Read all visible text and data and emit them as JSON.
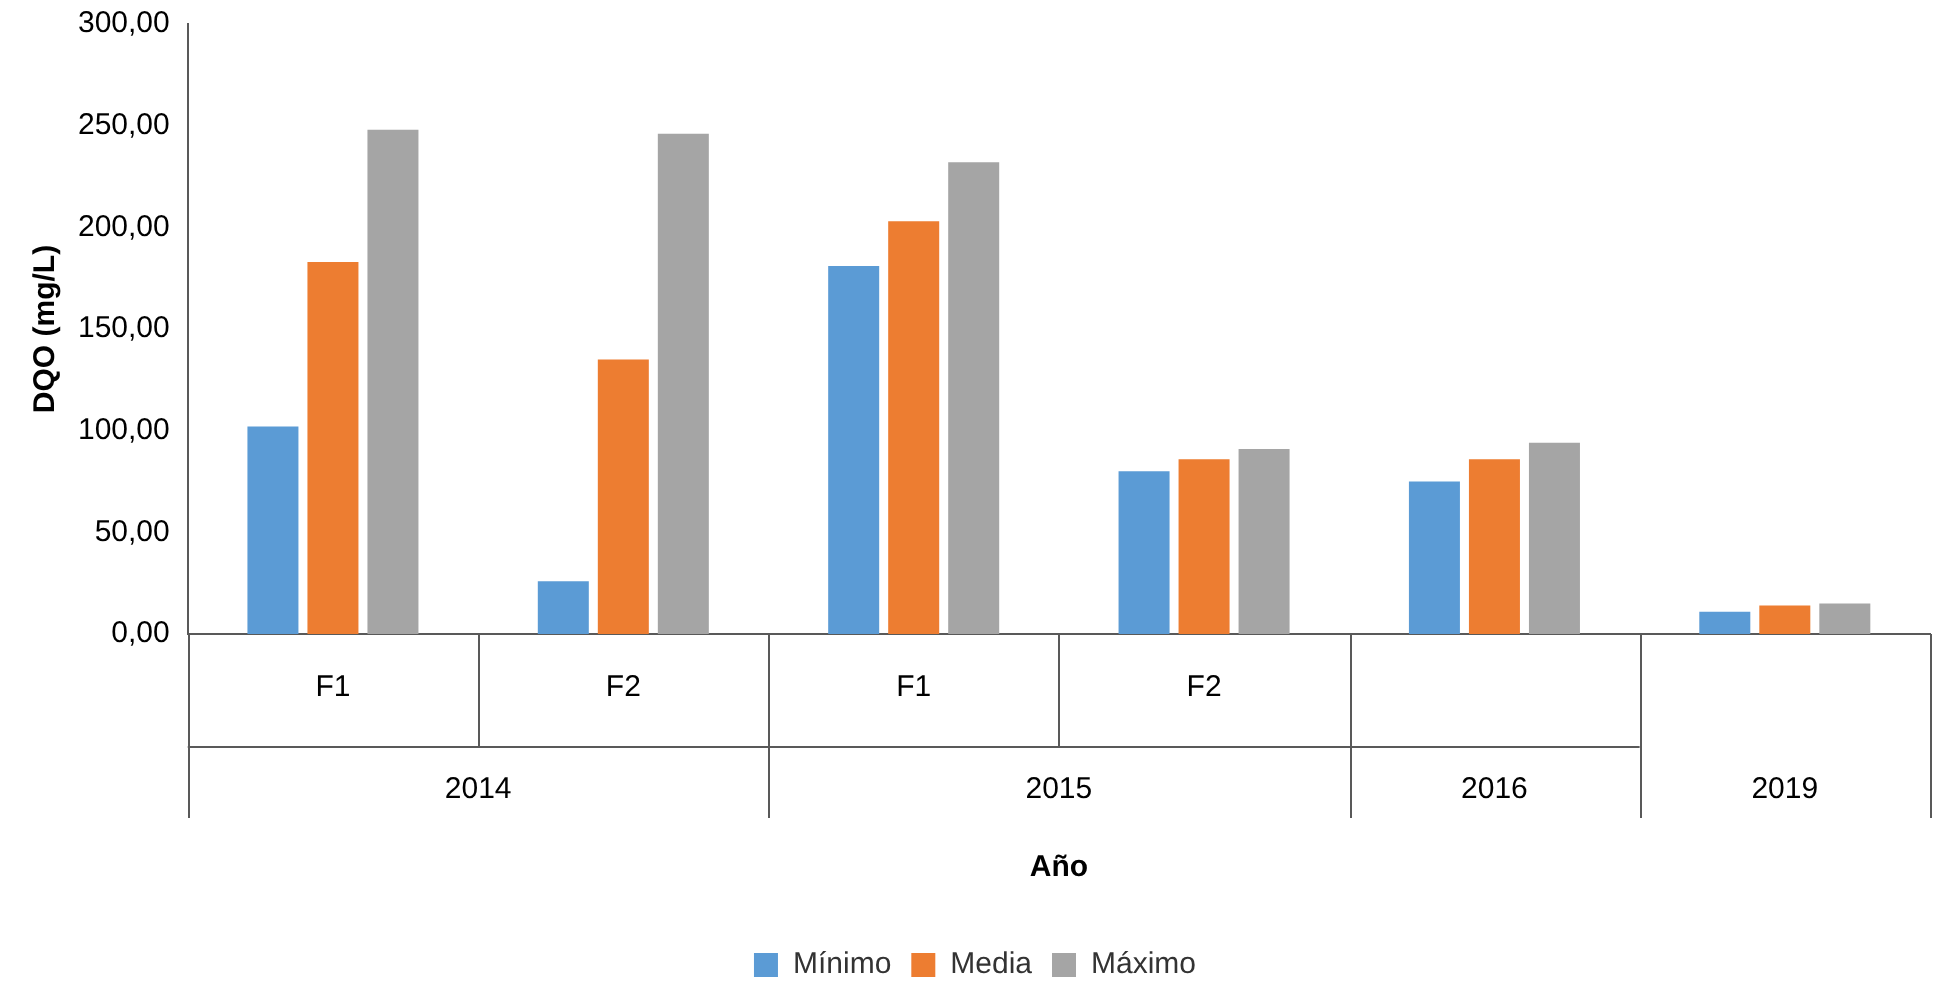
{
  "chart_data": {
    "type": "bar",
    "xlabel": "Año",
    "ylabel": "DQO (mg/L)",
    "categories": [
      "F1",
      "F2",
      "F1",
      "F2",
      null,
      null
    ],
    "annotations": [
      "2014",
      "2015",
      "2016",
      "2019"
    ],
    "series": [
      {
        "name": "Mínimo",
        "color": "#5b9bd5",
        "values": [
          102,
          26,
          181,
          80,
          75,
          11
        ]
      },
      {
        "name": "Media",
        "color": "#ed7d31",
        "values": [
          183,
          135,
          203,
          86,
          86,
          14
        ]
      },
      {
        "name": "Máximo",
        "color": "#a5a5a5",
        "values": [
          248,
          246,
          232,
          91,
          94,
          15
        ]
      }
    ],
    "ylim": [
      0,
      300
    ],
    "yticks": [
      {
        "value": 0,
        "label": "0,00"
      },
      {
        "value": 50,
        "label": "50,00"
      },
      {
        "value": 100,
        "label": "100,00"
      },
      {
        "value": 150,
        "label": "150,00"
      },
      {
        "value": 200,
        "label": "200,00"
      },
      {
        "value": 250,
        "label": "250,00"
      },
      {
        "value": 300,
        "label": "300,00"
      }
    ],
    "grid": false,
    "legend": "bottom"
  }
}
